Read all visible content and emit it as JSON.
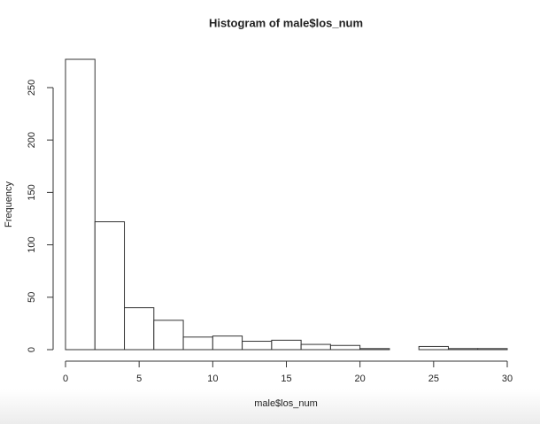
{
  "chart_data": {
    "type": "histogram",
    "title": "Histogram of male$los_num",
    "x_label": "male$los_num",
    "y_label": "Frequency",
    "bins": [
      0,
      2,
      4,
      6,
      8,
      10,
      12,
      14,
      16,
      18,
      20,
      22,
      24,
      26,
      28,
      30
    ],
    "counts": [
      277,
      122,
      40,
      28,
      12,
      13,
      8,
      9,
      5,
      4,
      1,
      0,
      3,
      1,
      1
    ],
    "color": "#ffffff",
    "xlim": [
      0,
      30
    ],
    "xticks": [
      0,
      5,
      10,
      15,
      20,
      25,
      30
    ],
    "ylim": [
      0,
      277
    ],
    "yticks": [
      0,
      50,
      100,
      150,
      200,
      250
    ]
  }
}
